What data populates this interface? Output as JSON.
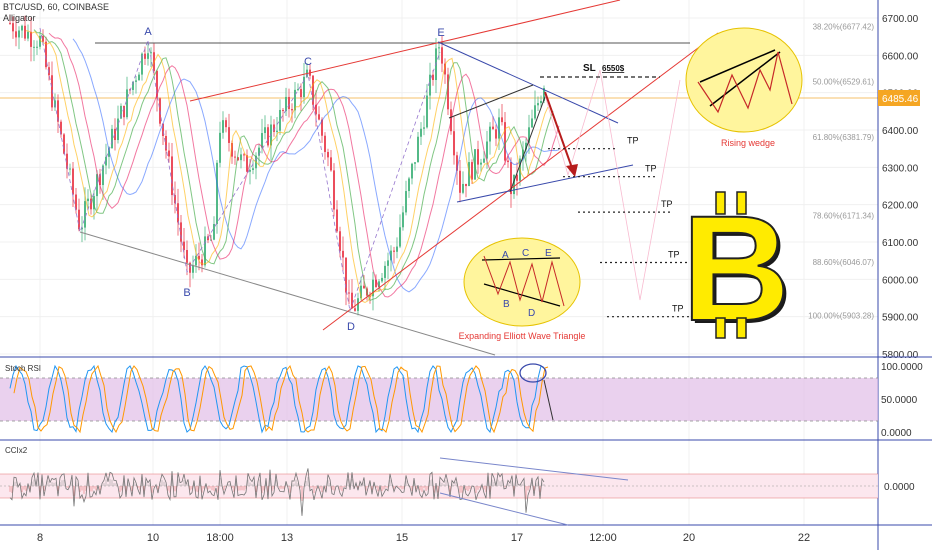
{
  "header": {
    "symbol": "BTC/USD, 60, COINBASE",
    "indicator": "Alligator"
  },
  "price_label": "6485.46",
  "colors": {
    "up": "#53b987",
    "down": "#eb4d5c",
    "alligator_jaw": "#2962ff",
    "alligator_teeth": "#e91e63",
    "alligator_lips": "#4caf50",
    "wedge": "#e53935",
    "tp_line": "#222222",
    "bitcoin": "#ffeb00",
    "rsi_band": "#e1bee7",
    "rsi_k": "#2196f3",
    "rsi_d": "#ff9800"
  },
  "chart_data": [
    {
      "type": "candlestick",
      "title": "BTC/USD, 60, COINBASE",
      "x_ticks": [
        "8",
        "10",
        "18:00",
        "13",
        "15",
        "17",
        "12:00",
        "20",
        "22"
      ],
      "y_ticks": [
        "6700.00",
        "6600.00",
        "6500.00",
        "6400.00",
        "6300.00",
        "6200.00",
        "6100.00",
        "6000.00",
        "5900.00",
        "5800.00"
      ],
      "ylim": [
        5790,
        6730
      ],
      "wave_points": [
        {
          "label": "A",
          "price": 6645
        },
        {
          "label": "B",
          "price": 6015
        },
        {
          "label": "C",
          "price": 6550
        },
        {
          "label": "D",
          "price": 5905
        },
        {
          "label": "E",
          "price": 6640
        }
      ],
      "fib_levels": [
        {
          "label": "38.20%(6677.42)",
          "price": 6677.42
        },
        {
          "label": "50.00%(6529.61)",
          "price": 6529.61
        },
        {
          "label": "61.80%(6381.79)",
          "price": 6381.79
        },
        {
          "label": "78.60%(6171.34)",
          "price": 6171.34
        },
        {
          "label": "88.60%(6046.07)",
          "price": 6046.07
        },
        {
          "label": "100.00%(5903.28)",
          "price": 5903.28
        }
      ],
      "stop_loss": {
        "label": "SL",
        "value_label": "6550$",
        "price": 6550
      },
      "take_profits": [
        {
          "label": "TP",
          "price": 6350
        },
        {
          "label": "TP",
          "price": 6275
        },
        {
          "label": "TP",
          "price": 6180
        },
        {
          "label": "TP",
          "price": 6045
        },
        {
          "label": "TP",
          "price": 5900
        }
      ],
      "annotations": [
        "Rising wedge",
        "Expanding Elliott Wave Triangle"
      ],
      "inset_labels": [
        "A",
        "C",
        "E",
        "B",
        "D"
      ],
      "last_price": 6485.46
    },
    {
      "type": "line",
      "title": "Stoch RSI",
      "y_ticks": [
        "100.0000",
        "50.0000",
        "0.0000"
      ],
      "ylim": [
        0,
        100
      ],
      "band": [
        20,
        80
      ]
    },
    {
      "type": "line",
      "title": "CCIx2",
      "y_ticks": [
        "0.0000"
      ]
    }
  ]
}
